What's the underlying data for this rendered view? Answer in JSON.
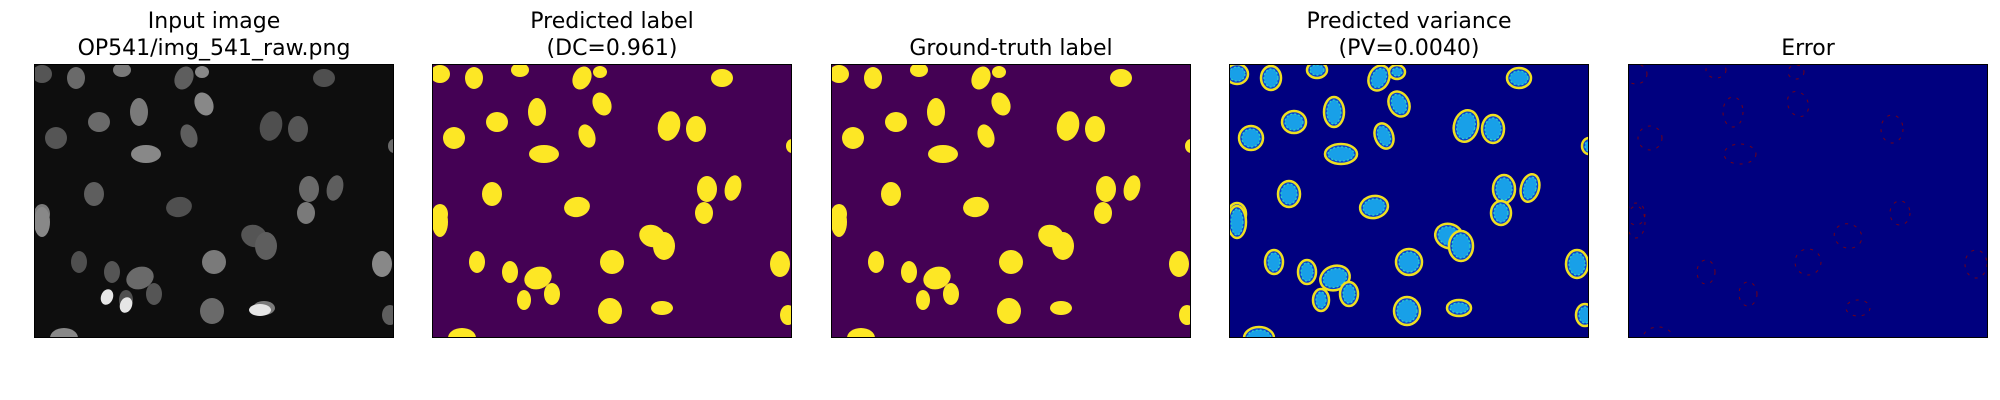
{
  "figure": {
    "panels": [
      {
        "id": "input",
        "title_lines": [
          "Input image",
          "OP541/img_541_raw.png"
        ]
      },
      {
        "id": "predicted-label",
        "title_lines": [
          "Predicted label",
          "(DC=0.961)"
        ]
      },
      {
        "id": "ground-truth",
        "title_lines": [
          "Ground-truth label"
        ]
      },
      {
        "id": "variance",
        "title_lines": [
          "Predicted variance",
          "(PV=0.0040)"
        ]
      },
      {
        "id": "error",
        "title_lines": [
          "Error"
        ]
      }
    ]
  },
  "colors": {
    "label_background": "#440154",
    "label_foreground": "#fde725",
    "variance_background": "#00007f",
    "error_background": "#00007f",
    "error_marks": "#8b0000",
    "input_background": "#0e0e0e"
  }
}
